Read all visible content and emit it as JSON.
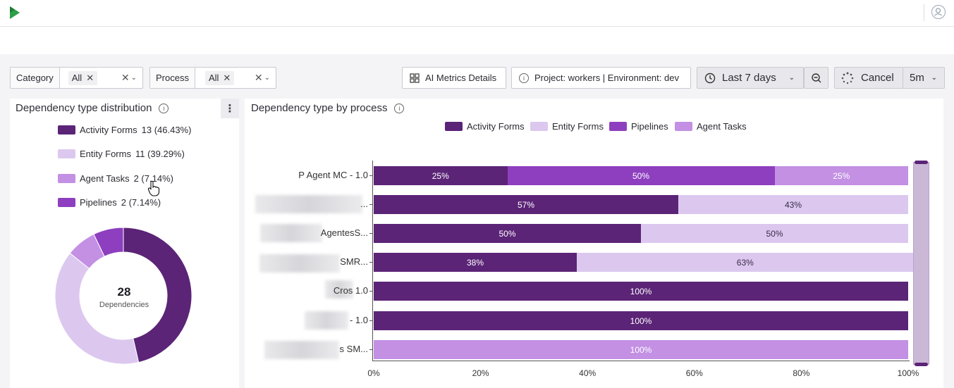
{
  "colors": {
    "activity_forms": "#5b2477",
    "entity_forms": "#dcc8ef",
    "pipelines": "#8e3fc0",
    "agent_tasks": "#c390e4"
  },
  "filters": {
    "category": {
      "label": "Category",
      "value": "All"
    },
    "process": {
      "label": "Process",
      "value": "All"
    }
  },
  "toolbar": {
    "ai_metrics": "AI Metrics Details",
    "project_env": "Project: workers | Environment: dev",
    "range": "Last 7 days",
    "cancel": "Cancel",
    "interval": "5m"
  },
  "dist_card": {
    "title": "Dependency type distribution",
    "legend": [
      {
        "name": "Activity Forms",
        "detail": "13 (46.43%)",
        "color": "#5b2477"
      },
      {
        "name": "Entity Forms",
        "detail": "11 (39.29%)",
        "color": "#dcc8ef"
      },
      {
        "name": "Agent Tasks",
        "detail": "2 (7.14%)",
        "color": "#c390e4"
      },
      {
        "name": "Pipelines",
        "detail": "2 (7.14%)",
        "color": "#8e3fc0"
      }
    ],
    "total": "28",
    "total_label": "Dependencies"
  },
  "chart_data": {
    "type": "bar",
    "orientation": "horizontal",
    "stacked": true,
    "title": "Dependency type by process",
    "legend": [
      "Activity Forms",
      "Entity Forms",
      "Pipelines",
      "Agent Tasks"
    ],
    "legend_position": "top",
    "categories": [
      "P Agent MC - 1.0",
      "...",
      "AgentesS...",
      "SMR...",
      "Cros 1.0",
      "- 1.0",
      "s SM..."
    ],
    "series": [
      {
        "name": "Activity Forms",
        "values": [
          25,
          57,
          50,
          38,
          100,
          100,
          0
        ]
      },
      {
        "name": "Entity Forms",
        "values": [
          0,
          43,
          50,
          63,
          0,
          0,
          0
        ]
      },
      {
        "name": "Pipelines",
        "values": [
          50,
          0,
          0,
          0,
          0,
          0,
          0
        ]
      },
      {
        "name": "Agent Tasks",
        "values": [
          25,
          0,
          0,
          0,
          0,
          0,
          100
        ]
      }
    ],
    "xlim": [
      0,
      100
    ],
    "xticks": [
      "0%",
      "20%",
      "40%",
      "60%",
      "80%",
      "100%"
    ],
    "grid": false
  }
}
